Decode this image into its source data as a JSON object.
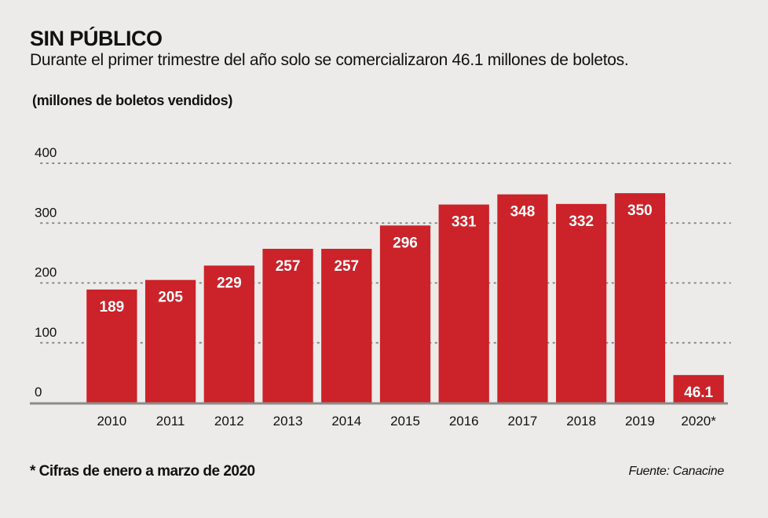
{
  "header": {
    "title": "SIN PÚBLICO",
    "subtitle": "Durante el primer trimestre del año solo se comercializaron 46.1 millones de boletos.",
    "unit_label": "(millones de boletos vendidos)"
  },
  "footer": {
    "footnote": "* Cifras de enero a marzo de 2020",
    "source": "Fuente: Canacine"
  },
  "colors": {
    "bar": "#cc2229",
    "bar_label": "#ffffff",
    "grid": "#888888",
    "axis": "#8c8c8c",
    "background": "#ecebe9"
  },
  "chart_data": {
    "type": "bar",
    "title": "SIN PÚBLICO",
    "subtitle": "Durante el primer trimestre del año solo se comercializaron 46.1 millones de boletos.",
    "xlabel": "",
    "ylabel": "(millones de boletos vendidos)",
    "categories": [
      "2010",
      "2011",
      "2012",
      "2013",
      "2014",
      "2015",
      "2016",
      "2017",
      "2018",
      "2019",
      "2020*"
    ],
    "values": [
      189,
      205,
      229,
      257,
      257,
      296,
      331,
      348,
      332,
      350,
      46.1
    ],
    "data_labels": [
      "189",
      "205",
      "229",
      "257",
      "257",
      "296",
      "331",
      "348",
      "332",
      "350",
      "46.1"
    ],
    "ylim": [
      0,
      400
    ],
    "yticks": [
      0,
      100,
      200,
      300,
      400
    ],
    "ytick_labels": [
      "0",
      "100",
      "200",
      "300",
      "400"
    ],
    "grid": true,
    "grid_style": "dotted",
    "legend": "none",
    "annotations": [
      "* Cifras de enero a marzo de 2020",
      "Fuente: Canacine"
    ]
  }
}
